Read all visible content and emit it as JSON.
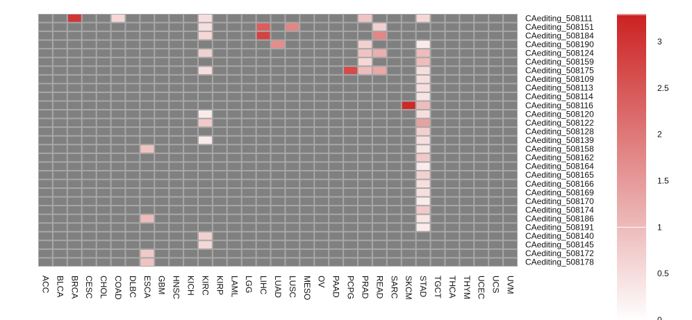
{
  "chart_data": {
    "type": "heatmap",
    "title": "",
    "xlabel": "",
    "ylabel": "",
    "categories": [
      "ACC",
      "BLCA",
      "BRCA",
      "CESC",
      "CHOL",
      "COAD",
      "DLBC",
      "ESCA",
      "GBM",
      "HNSC",
      "KICH",
      "KIRC",
      "KIRP",
      "LAML",
      "LGG",
      "LIHC",
      "LUAD",
      "LUSC",
      "MESO",
      "OV",
      "PAAD",
      "PCPG",
      "PRAD",
      "READ",
      "SARC",
      "SKCM",
      "STAD",
      "TGCT",
      "THCA",
      "THYM",
      "UCEC",
      "UCS",
      "UVM"
    ],
    "rows": [
      "CAediting_508111",
      "CAediting_508151",
      "CAediting_508184",
      "CAediting_508190",
      "CAediting_508124",
      "CAediting_508159",
      "CAediting_508175",
      "CAediting_508109",
      "CAediting_508113",
      "CAediting_508114",
      "CAediting_508116",
      "CAediting_508120",
      "CAediting_508122",
      "CAediting_508128",
      "CAediting_508139",
      "CAediting_508158",
      "CAediting_508162",
      "CAediting_508164",
      "CAediting_508165",
      "CAediting_508166",
      "CAediting_508169",
      "CAediting_508170",
      "CAediting_508174",
      "CAediting_508186",
      "CAediting_508191",
      "CAediting_508140",
      "CAediting_508145",
      "CAediting_508172",
      "CAediting_508178"
    ],
    "cells": [
      {
        "row": "CAediting_508111",
        "col": "BRCA",
        "value": 3.0
      },
      {
        "row": "CAediting_508111",
        "col": "COAD",
        "value": 0.6
      },
      {
        "row": "CAediting_508111",
        "col": "KIRC",
        "value": 0.5
      },
      {
        "row": "CAediting_508111",
        "col": "PRAD",
        "value": 0.9
      },
      {
        "row": "CAediting_508111",
        "col": "STAD",
        "value": 0.6
      },
      {
        "row": "CAediting_508151",
        "col": "KIRC",
        "value": 0.5
      },
      {
        "row": "CAediting_508151",
        "col": "LIHC",
        "value": 2.4
      },
      {
        "row": "CAediting_508151",
        "col": "LUSC",
        "value": 1.8
      },
      {
        "row": "CAediting_508151",
        "col": "READ",
        "value": 0.7
      },
      {
        "row": "CAediting_508184",
        "col": "KIRC",
        "value": 0.6
      },
      {
        "row": "CAediting_508184",
        "col": "LIHC",
        "value": 2.8
      },
      {
        "row": "CAediting_508184",
        "col": "READ",
        "value": 1.8
      },
      {
        "row": "CAediting_508190",
        "col": "LUAD",
        "value": 1.7
      },
      {
        "row": "CAediting_508190",
        "col": "PRAD",
        "value": 0.7
      },
      {
        "row": "CAediting_508190",
        "col": "STAD",
        "value": 0.3
      },
      {
        "row": "CAediting_508124",
        "col": "KIRC",
        "value": 0.7
      },
      {
        "row": "CAediting_508124",
        "col": "PRAD",
        "value": 0.9
      },
      {
        "row": "CAediting_508124",
        "col": "READ",
        "value": 1.2
      },
      {
        "row": "CAediting_508124",
        "col": "STAD",
        "value": 1.0
      },
      {
        "row": "CAediting_508159",
        "col": "PRAD",
        "value": 0.6
      },
      {
        "row": "CAediting_508159",
        "col": "STAD",
        "value": 1.0
      },
      {
        "row": "CAediting_508175",
        "col": "KIRC",
        "value": 0.5
      },
      {
        "row": "CAediting_508175",
        "col": "PCPG",
        "value": 2.7
      },
      {
        "row": "CAediting_508175",
        "col": "PRAD",
        "value": 1.0
      },
      {
        "row": "CAediting_508175",
        "col": "READ",
        "value": 1.3
      },
      {
        "row": "CAediting_508175",
        "col": "STAD",
        "value": 0.5
      },
      {
        "row": "CAediting_508109",
        "col": "STAD",
        "value": 0.5
      },
      {
        "row": "CAediting_508113",
        "col": "STAD",
        "value": 0.5
      },
      {
        "row": "CAediting_508114",
        "col": "STAD",
        "value": 0.4
      },
      {
        "row": "CAediting_508116",
        "col": "SKCM",
        "value": 3.2
      },
      {
        "row": "CAediting_508116",
        "col": "STAD",
        "value": 1.0
      },
      {
        "row": "CAediting_508120",
        "col": "KIRC",
        "value": 0.3
      },
      {
        "row": "CAediting_508120",
        "col": "STAD",
        "value": 0.5
      },
      {
        "row": "CAediting_508122",
        "col": "KIRC",
        "value": 0.8
      },
      {
        "row": "CAediting_508122",
        "col": "STAD",
        "value": 1.4
      },
      {
        "row": "CAediting_508128",
        "col": "STAD",
        "value": 0.7
      },
      {
        "row": "CAediting_508139",
        "col": "KIRC",
        "value": 0.3
      },
      {
        "row": "CAediting_508139",
        "col": "STAD",
        "value": 0.5
      },
      {
        "row": "CAediting_508158",
        "col": "ESCA",
        "value": 0.9
      },
      {
        "row": "CAediting_508158",
        "col": "STAD",
        "value": 0.4
      },
      {
        "row": "CAediting_508162",
        "col": "STAD",
        "value": 0.8
      },
      {
        "row": "CAediting_508164",
        "col": "STAD",
        "value": 0.3
      },
      {
        "row": "CAediting_508165",
        "col": "STAD",
        "value": 0.7
      },
      {
        "row": "CAediting_508166",
        "col": "STAD",
        "value": 0.5
      },
      {
        "row": "CAediting_508169",
        "col": "STAD",
        "value": 0.5
      },
      {
        "row": "CAediting_508170",
        "col": "STAD",
        "value": 0.3
      },
      {
        "row": "CAediting_508174",
        "col": "STAD",
        "value": 0.8
      },
      {
        "row": "CAediting_508186",
        "col": "ESCA",
        "value": 1.0
      },
      {
        "row": "CAediting_508186",
        "col": "STAD",
        "value": 0.4
      },
      {
        "row": "CAediting_508191",
        "col": "STAD",
        "value": 0.3
      },
      {
        "row": "CAediting_508140",
        "col": "KIRC",
        "value": 0.7
      },
      {
        "row": "CAediting_508145",
        "col": "KIRC",
        "value": 0.6
      },
      {
        "row": "CAediting_508172",
        "col": "ESCA",
        "value": 0.8
      },
      {
        "row": "CAediting_508178",
        "col": "ESCA",
        "value": 0.9
      }
    ],
    "na_color": "#808080",
    "grid_color": "#a8a8a8",
    "color_scale": {
      "min": 0,
      "max": 3.3,
      "colors": [
        "#ffffff",
        "#eebcbc",
        "#cc2222"
      ],
      "ticks": [
        "0",
        "0.5",
        "1",
        "1.5",
        "2",
        "2.5",
        "3"
      ],
      "tick_values": [
        0,
        0.5,
        1,
        1.5,
        2,
        2.5,
        3
      ],
      "break_value": 1
    }
  }
}
